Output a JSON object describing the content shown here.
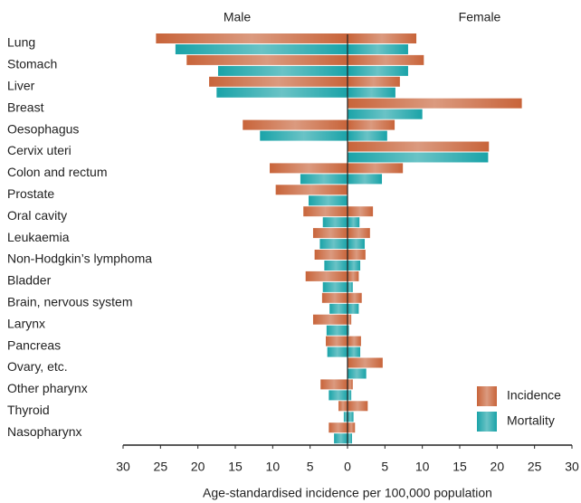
{
  "chart_data": {
    "type": "mirror_bar",
    "side_labels": [
      "Male",
      "Female"
    ],
    "x_label": "Age-standardised incidence per 100,000 population",
    "categories": [
      "Lung",
      "Stomach",
      "Liver",
      "Breast",
      "Oesophagus",
      "Cervix uteri",
      "Colon and rectum",
      "Prostate",
      "Oral cavity",
      "Leukaemia",
      "Non-Hodgkin’s lymphoma",
      "Bladder",
      "Brain, nervous system",
      "Larynx",
      "Pancreas",
      "Ovary, etc.",
      "Other pharynx",
      "Thyroid",
      "Nasopharynx"
    ],
    "series": [
      {
        "name": "Incidence",
        "color": "#c8643a",
        "male": [
          -25.6,
          -21.5,
          -18.5,
          null,
          -14.0,
          null,
          -10.4,
          -9.6,
          -5.9,
          -4.6,
          -4.4,
          -5.6,
          -3.4,
          -4.6,
          -2.9,
          null,
          -3.6,
          -1.2,
          -2.5
        ],
        "female": [
          9.2,
          10.2,
          7.0,
          23.3,
          6.3,
          18.9,
          7.4,
          null,
          3.4,
          3.0,
          2.4,
          1.5,
          1.9,
          0.5,
          1.8,
          4.7,
          0.7,
          2.7,
          1.0
        ]
      },
      {
        "name": "Mortality",
        "color": "#1aa3a8",
        "male": [
          -23.0,
          -17.3,
          -17.5,
          null,
          -11.7,
          null,
          -6.3,
          -5.2,
          -3.3,
          -3.7,
          -3.1,
          -3.3,
          -2.4,
          -2.8,
          -2.7,
          null,
          -2.5,
          -0.5,
          -1.8
        ],
        "female": [
          8.1,
          8.1,
          6.4,
          10.0,
          5.3,
          18.8,
          4.6,
          null,
          1.6,
          2.3,
          1.7,
          0.7,
          1.5,
          0.2,
          1.7,
          2.5,
          0.5,
          0.8,
          0.6
        ]
      }
    ],
    "xlim": [
      -30,
      30
    ],
    "xticks": [
      {
        "value": -30,
        "label": "30"
      },
      {
        "value": -25,
        "label": "25"
      },
      {
        "value": -20,
        "label": "20"
      },
      {
        "value": -15,
        "label": "15"
      },
      {
        "value": -10,
        "label": "10"
      },
      {
        "value": -5,
        "label": "5"
      },
      0,
      5,
      10,
      15,
      20,
      25,
      30
    ],
    "legend": "lower right"
  }
}
